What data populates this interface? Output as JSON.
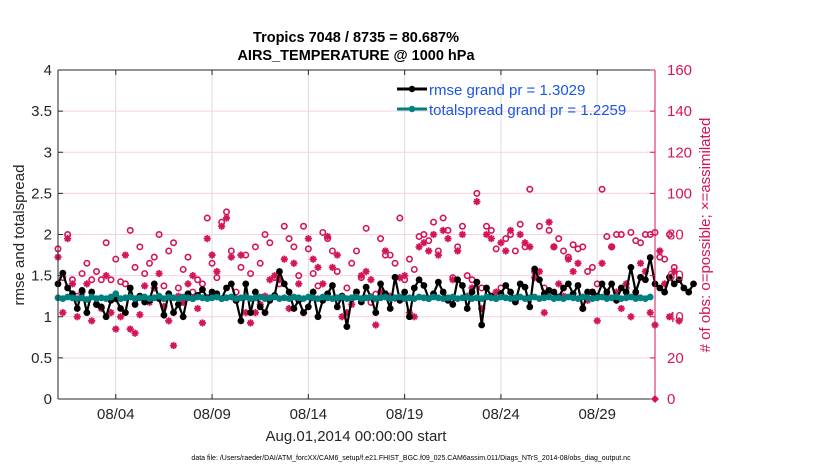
{
  "chart_data": {
    "type": "line",
    "title": "Tropics 7048 / 8735 = 80.687%",
    "subtitle": "AIRS_TEMPERATURE @ 1000 hPa",
    "xlabel": "Aug.01,2014 00:00:00 start",
    "ylabel": "rmse and totalspread",
    "ylabel_right": "# of obs: o=possible; ×=assimilated",
    "x_start": "2014-08-01 00:00",
    "x_step_hours": 6,
    "xlim_days": [
      0,
      31
    ],
    "x_ticks": [
      {
        "day": 3,
        "label": "08/04"
      },
      {
        "day": 8,
        "label": "08/09"
      },
      {
        "day": 13,
        "label": "08/14"
      },
      {
        "day": 18,
        "label": "08/19"
      },
      {
        "day": 23,
        "label": "08/24"
      },
      {
        "day": 28,
        "label": "08/29"
      }
    ],
    "ylim": [
      0,
      4
    ],
    "y_ticks": [
      0,
      0.5,
      1,
      1.5,
      2,
      2.5,
      3,
      3.5,
      4
    ],
    "y_tick_labels": [
      "0",
      "0.5",
      "1",
      "1.5",
      "2",
      "2.5",
      "3",
      "3.5",
      "4"
    ],
    "ylim_right": [
      0,
      160
    ],
    "y_ticks_right": [
      0,
      20,
      40,
      60,
      80,
      100,
      120,
      140,
      160
    ],
    "grid": true,
    "legend_position": "top-right",
    "series": [
      {
        "name": "rmse grand pr = 1.3029",
        "axis": "left",
        "color": "#000000",
        "marker": "filled-circle",
        "values": [
          1.4,
          1.53,
          1.35,
          1.28,
          1.1,
          1.32,
          1.05,
          1.3,
          1.15,
          1.12,
          1.0,
          1.2,
          1.22,
          1.1,
          1.05,
          1.35,
          1.15,
          1.25,
          1.18,
          1.2,
          1.4,
          1.22,
          1.02,
          1.28,
          1.05,
          1.15,
          1.0,
          1.28,
          1.22,
          1.26,
          1.33,
          1.23,
          1.3,
          1.28,
          1.22,
          1.35,
          1.4,
          1.2,
          0.95,
          1.4,
          1.05,
          1.3,
          1.12,
          1.05,
          1.2,
          1.26,
          1.55,
          1.4,
          1.3,
          1.1,
          1.2,
          1.05,
          1.12,
          1.3,
          1.0,
          1.2,
          1.28,
          1.38,
          1.12,
          1.25,
          0.88,
          1.22,
          1.3,
          1.18,
          1.36,
          1.24,
          1.05,
          1.4,
          1.28,
          1.1,
          1.48,
          1.2,
          1.3,
          1.0,
          1.35,
          1.45,
          1.38,
          1.22,
          1.28,
          1.42,
          1.3,
          1.2,
          1.15,
          1.45,
          1.38,
          1.1,
          1.3,
          1.42,
          0.9,
          1.35,
          1.25,
          1.22,
          1.28,
          1.38,
          1.3,
          1.18,
          1.4,
          1.36,
          1.12,
          1.58,
          1.45,
          1.28,
          1.32,
          1.3,
          1.24,
          1.35,
          1.4,
          1.28,
          1.38,
          1.1,
          1.3,
          1.3,
          1.25,
          1.4,
          1.3,
          1.4,
          1.2,
          1.35,
          1.3,
          1.6,
          1.3,
          1.48,
          1.45,
          1.72,
          1.4,
          1.35,
          1.3,
          1.48,
          1.4,
          1.45,
          1.35,
          1.3,
          1.4
        ]
      },
      {
        "name": "totalspread grand pr = 1.2259",
        "axis": "left",
        "color": "#00807f",
        "marker": "filled-circle",
        "values": [
          1.23,
          1.22,
          1.24,
          1.23,
          1.22,
          1.23,
          1.21,
          1.24,
          1.22,
          1.23,
          1.22,
          1.24,
          1.28,
          1.22,
          1.23,
          1.24,
          1.22,
          1.23,
          1.24,
          1.22,
          1.23,
          1.25,
          1.22,
          1.24,
          1.23,
          1.22,
          1.24,
          1.23,
          1.22,
          1.24,
          1.23,
          1.22,
          1.23,
          1.24,
          1.22,
          1.23,
          1.24,
          1.22,
          1.23,
          1.24,
          1.22,
          1.23,
          1.24,
          1.22,
          1.23,
          1.24,
          1.22,
          1.23,
          1.22,
          1.24,
          1.23,
          1.22,
          1.24,
          1.23,
          1.22,
          1.24,
          1.23,
          1.22,
          1.23,
          1.24,
          1.22,
          1.23,
          1.24,
          1.22,
          1.23,
          1.24,
          1.22,
          1.23,
          1.24,
          1.22,
          1.23,
          1.24,
          1.22,
          1.23,
          1.22,
          1.24,
          1.23,
          1.22,
          1.24,
          1.23,
          1.22,
          1.23,
          1.24,
          1.22,
          1.23,
          1.24,
          1.22,
          1.23,
          1.22,
          1.24,
          1.23,
          1.22,
          1.24,
          1.23,
          1.22,
          1.23,
          1.24,
          1.22,
          1.23,
          1.24,
          1.22,
          1.23,
          1.24,
          1.22,
          1.23,
          1.22,
          1.24,
          1.23,
          1.22,
          1.24,
          1.23,
          1.22,
          1.23,
          1.24,
          1.22,
          1.23,
          1.24,
          1.22,
          1.23,
          1.24,
          1.22,
          1.23,
          1.22,
          1.24
        ]
      },
      {
        "name": "# obs possible",
        "axis": "right",
        "color": "#d4145a",
        "marker": "open-circle",
        "values": [
          73,
          59,
          80,
          58,
          50,
          61,
          66,
          58,
          62,
          58,
          76,
          58,
          68,
          57,
          56,
          82,
          64,
          74,
          61,
          66,
          69,
          80,
          55,
          72,
          76,
          54,
          63,
          69,
          52,
          58,
          56,
          88,
          66,
          59,
          86,
          91,
          72,
          52,
          64,
          70,
          61,
          74,
          66,
          80,
          76,
          59,
          56,
          84,
          78,
          74,
          60,
          84,
          73,
          61,
          55,
          81,
          78,
          72,
          62,
          50,
          54,
          66,
          72,
          59,
          83,
          47,
          51,
          78,
          70,
          70,
          66,
          88,
          58,
          68,
          63,
          79,
          80,
          77,
          86,
          72,
          88,
          82,
          59,
          74,
          84,
          60,
          58,
          100,
          54,
          84,
          82,
          73,
          54,
          78,
          80,
          72,
          85,
          74,
          102,
          62,
          84,
          54,
          82,
          74,
          78,
          72,
          69,
          75,
          73,
          74,
          62,
          64,
          56,
          102,
          79,
          74,
          80,
          80,
          54,
          81,
          77,
          76,
          80,
          80,
          81,
          69,
          68,
          80,
          64
        ]
      },
      {
        "name": "# obs assimilated",
        "axis": "right",
        "color": "#d4145a",
        "marker": "asterisk",
        "values": [
          69,
          42,
          78,
          56,
          40,
          52,
          56,
          38,
          46,
          44,
          60,
          42,
          34,
          40,
          70,
          34,
          32,
          41,
          55,
          47,
          54,
          61,
          45,
          38,
          26,
          50,
          47,
          56,
          60,
          44,
          37,
          78,
          70,
          62,
          84,
          88,
          69,
          48,
          70,
          42,
          37,
          42,
          46,
          50,
          58,
          60,
          58,
          68,
          44,
          66,
          56,
          42,
          78,
          68,
          64,
          56,
          79,
          64,
          70,
          40,
          42,
          46,
          52,
          60,
          62,
          58,
          36,
          52,
          72,
          50,
          49,
          59,
          60,
          42,
          40,
          74,
          76,
          72,
          80,
          70,
          82,
          78,
          58,
          72,
          80,
          50,
          54,
          96,
          44,
          80,
          78,
          52,
          76,
          72,
          82,
          48,
          80,
          76,
          74,
          59,
          62,
          42,
          86,
          74,
          56,
          50,
          68,
          62,
          66,
          44,
          48,
          52,
          38,
          66,
          50,
          74,
          52,
          44,
          56,
          40,
          50,
          66,
          62,
          42,
          36,
          72,
          56,
          40,
          62,
          38
        ]
      }
    ],
    "footer": "data file: /Users/raeder/DAI/ATM_forcXX/CAM6_setup/f.e21.FHIST_BGC.f09_025.CAM6assim.011/Diags_NTrS_2014-08/obs_diag_output.nc"
  }
}
